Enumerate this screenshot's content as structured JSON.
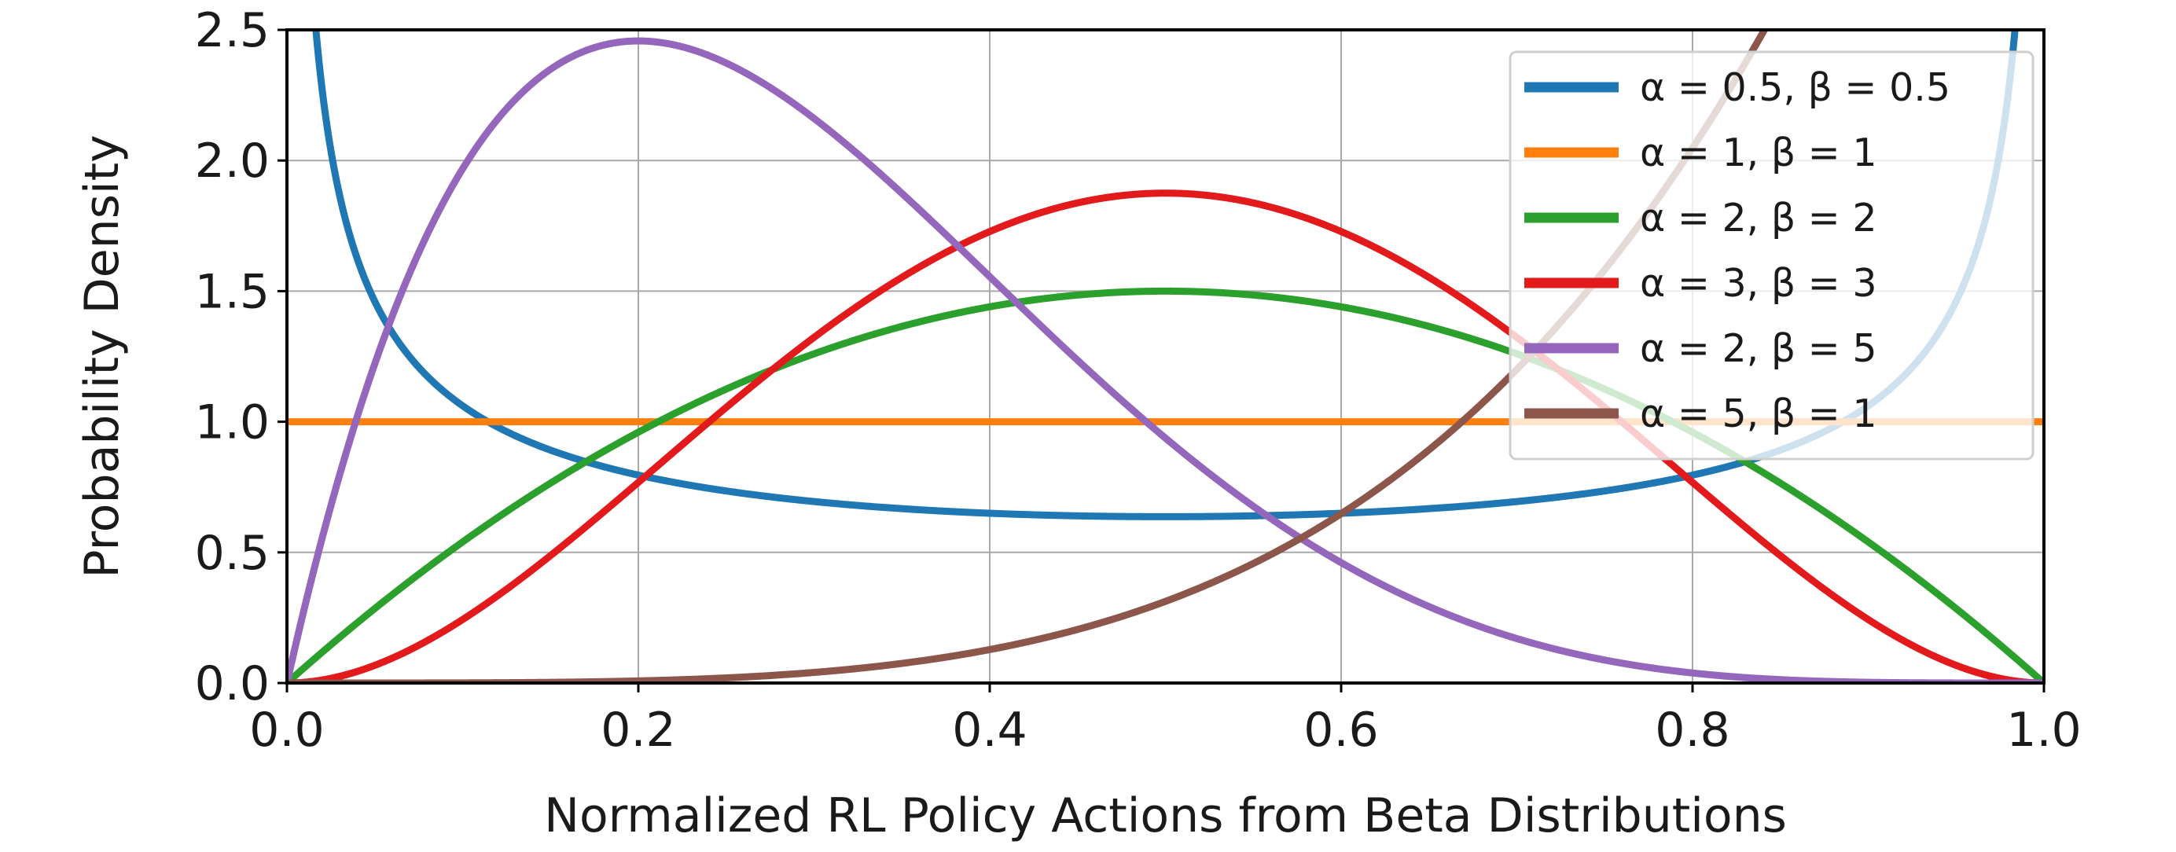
{
  "chart_data": {
    "type": "line",
    "title": "",
    "xlabel": "Normalized RL Policy Actions from Beta Distributions",
    "ylabel": "Probability Density",
    "xlim": [
      0.0,
      1.0
    ],
    "ylim": [
      0.0,
      2.5
    ],
    "grid": true,
    "legend_position": "top-right",
    "x_ticks": [
      0.0,
      0.2,
      0.4,
      0.6,
      0.8,
      1.0
    ],
    "x_tick_labels": [
      "0.0",
      "0.2",
      "0.4",
      "0.6",
      "0.8",
      "1.0"
    ],
    "y_ticks": [
      0.0,
      0.5,
      1.0,
      1.5,
      2.0,
      2.5
    ],
    "y_tick_labels": [
      "0.0",
      "0.5",
      "1.0",
      "1.5",
      "2.0",
      "2.5"
    ],
    "series": [
      {
        "name": "α = 0.5, β = 0.5",
        "alpha": 0.5,
        "beta": 0.5,
        "color": "#1f77b4",
        "x": [
          0.0,
          0.5,
          1.0
        ],
        "y": [
          null,
          0.6366,
          null
        ]
      },
      {
        "name": "α = 1, β = 1",
        "alpha": 1,
        "beta": 1,
        "color": "#ff7f0e",
        "x": [
          0.0,
          0.5,
          1.0
        ],
        "y": [
          1.0,
          1.0,
          1.0
        ]
      },
      {
        "name": "α = 2, β = 2",
        "alpha": 2,
        "beta": 2,
        "color": "#2ca02c",
        "x": [
          0.0,
          0.5,
          1.0
        ],
        "y": [
          0.0,
          1.5,
          0.0
        ]
      },
      {
        "name": "α = 3, β = 3",
        "alpha": 3,
        "beta": 3,
        "color": "#e31a1c",
        "x": [
          0.0,
          0.5,
          1.0
        ],
        "y": [
          0.0,
          1.875,
          0.0
        ]
      },
      {
        "name": "α = 2, β = 5",
        "alpha": 2,
        "beta": 5,
        "color": "#9467bd",
        "x": [
          0.0,
          0.2,
          1.0
        ],
        "y": [
          0.0,
          2.4576,
          0.0
        ]
      },
      {
        "name": "α = 5, β = 1",
        "alpha": 5,
        "beta": 1,
        "color": "#8c564b",
        "x": [
          0.0,
          0.5,
          0.84
        ],
        "y": [
          0.0,
          0.3125,
          2.489
        ]
      }
    ]
  }
}
